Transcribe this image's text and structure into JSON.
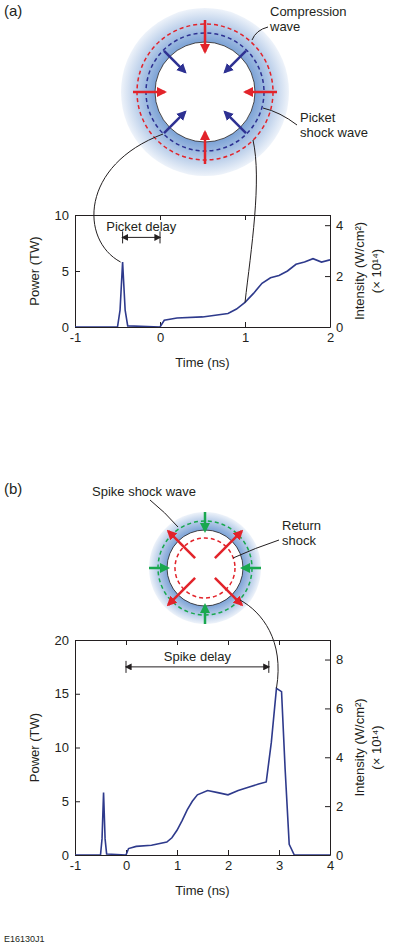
{
  "chart_data": [
    {
      "type": "line",
      "panel": "(a)",
      "x_label": "Time (ns)",
      "y_label": "Power (TW)",
      "y2_label": [
        "Intensity (W/cm²)",
        "(× 10¹⁴)"
      ],
      "xlim": [
        -1,
        2
      ],
      "xticks": [
        -1,
        0,
        1,
        2
      ],
      "ylim": [
        0,
        10
      ],
      "yticks": [
        0,
        5,
        10
      ],
      "y2lim": [
        0,
        4.4
      ],
      "y2ticks": [
        0,
        2,
        4
      ],
      "x": [
        -1,
        -0.5,
        -0.47,
        -0.44,
        -0.41,
        -0.38,
        0,
        0.05,
        0.2,
        0.5,
        0.8,
        0.9,
        1.0,
        1.1,
        1.2,
        1.3,
        1.4,
        1.5,
        1.6,
        1.7,
        1.8,
        1.9,
        2.0
      ],
      "series": [
        {
          "color": "#2e3a8c",
          "values": [
            0,
            0,
            1.5,
            5.8,
            1.5,
            0.1,
            0,
            0.6,
            0.8,
            0.9,
            1.2,
            1.6,
            2.2,
            3.0,
            3.9,
            4.4,
            4.6,
            5.0,
            5.6,
            5.8,
            6.1,
            5.8,
            6.0
          ]
        }
      ],
      "annotations": [
        {
          "text": "Picket delay",
          "x_start": -0.44,
          "x_end": 0,
          "y": 8
        }
      ],
      "diagram_labels": [
        "Compression wave",
        "Picket shock wave"
      ]
    },
    {
      "type": "line",
      "panel": "(b)",
      "x_label": "Time (ns)",
      "y_label": "Power (TW)",
      "y2_label": [
        "Intensity (W/cm²)",
        "(× 10¹⁴)"
      ],
      "xlim": [
        -1,
        4
      ],
      "xticks": [
        -1,
        0,
        1,
        2,
        3,
        4
      ],
      "ylim": [
        0,
        20
      ],
      "yticks": [
        0,
        5,
        10,
        15,
        20
      ],
      "y2lim": [
        0,
        8.8
      ],
      "y2ticks": [
        0,
        2,
        4,
        6,
        8
      ],
      "x": [
        -1,
        -0.5,
        -0.47,
        -0.44,
        -0.41,
        -0.38,
        0,
        0.05,
        0.2,
        0.5,
        0.8,
        0.9,
        1.0,
        1.1,
        1.2,
        1.3,
        1.4,
        1.6,
        1.8,
        2.0,
        2.2,
        2.4,
        2.6,
        2.75,
        2.85,
        2.95,
        3.05,
        3.12,
        3.2,
        3.3,
        4.0
      ],
      "series": [
        {
          "color": "#2e3a8c",
          "values": [
            0,
            0,
            1.5,
            5.8,
            1.5,
            0.1,
            0,
            0.6,
            0.8,
            0.9,
            1.2,
            1.6,
            2.3,
            3.2,
            4.2,
            5.0,
            5.6,
            6.0,
            5.8,
            5.6,
            6.0,
            6.3,
            6.6,
            6.8,
            10.5,
            15.5,
            15.2,
            8.0,
            1.0,
            0,
            0
          ]
        }
      ],
      "annotations": [
        {
          "text": "Spike delay",
          "x_start": 0,
          "x_end": 2.8,
          "y": 17.5
        }
      ],
      "diagram_labels": [
        "Spike shock wave",
        "Return shock"
      ]
    }
  ],
  "figure_id": "E16130J1"
}
